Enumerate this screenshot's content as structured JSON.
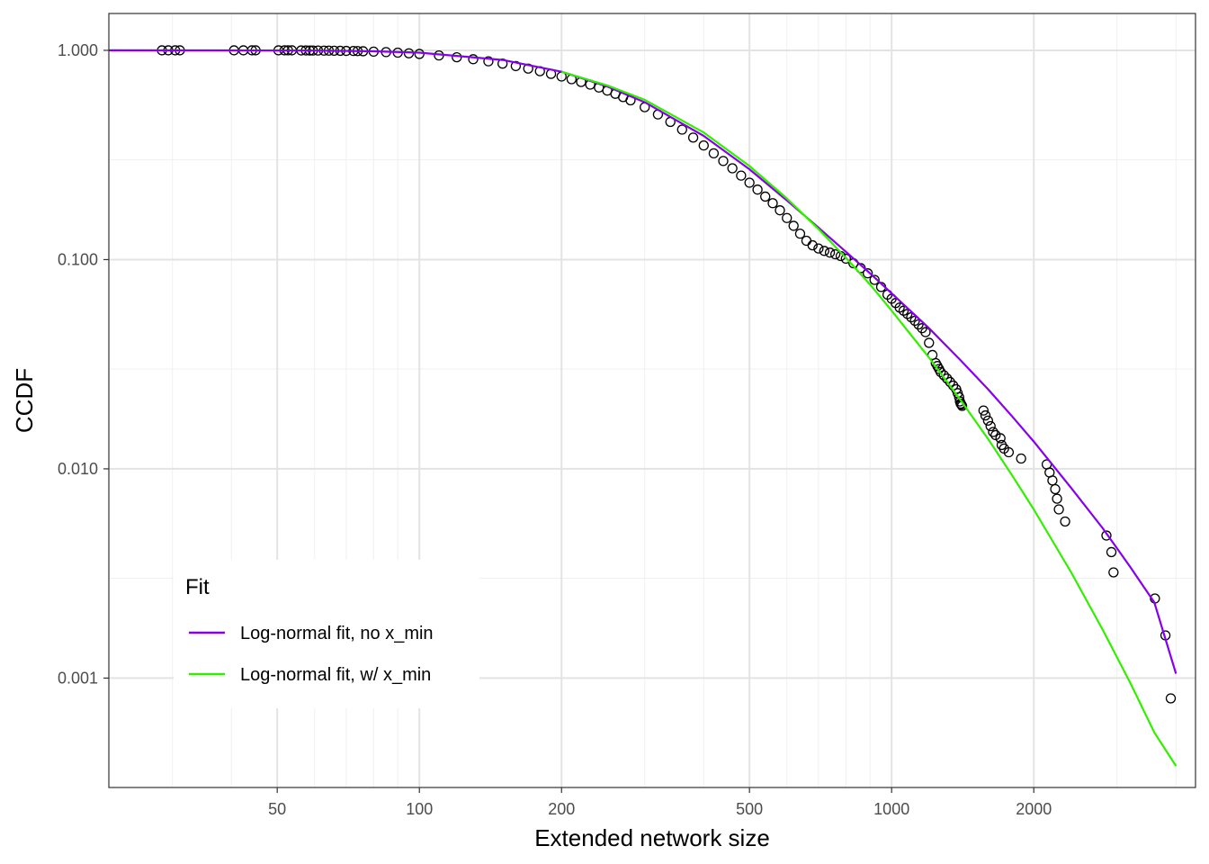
{
  "chart_data": {
    "type": "scatter",
    "title": "",
    "xlabel": "Extended network size",
    "ylabel": "CCDF",
    "x_scale": "log",
    "y_scale": "log",
    "xlim": [
      22,
      4400
    ],
    "ylim": [
      0.0003,
      1.5
    ],
    "x_ticks": [
      50,
      100,
      200,
      500,
      1000,
      2000
    ],
    "x_tick_labels": [
      "50",
      "100",
      "200",
      "500",
      "1000",
      "2000"
    ],
    "y_ticks": [
      0.001,
      0.01,
      0.1,
      1.0
    ],
    "y_tick_labels": [
      "0.001",
      "0.010",
      "0.100",
      "1.000"
    ],
    "grid": true,
    "series": [
      {
        "type": "scatter",
        "marker": "open-circle",
        "color": "#000000",
        "x": [
          28.5,
          29.4,
          30.4,
          31.1,
          40.5,
          42.4,
          44.2,
          45.0,
          50.3,
          51.8,
          52.7,
          53.7,
          56.2,
          57.5,
          58.6,
          59.5,
          61.0,
          62.8,
          64.3,
          66.0,
          68.0,
          70.0,
          72.5,
          74.0,
          76.0,
          80,
          85,
          90,
          95,
          100,
          110,
          120,
          130,
          140,
          150,
          160,
          170,
          180,
          190,
          200,
          210,
          220,
          230,
          240,
          250,
          260,
          270,
          280,
          300,
          320,
          340,
          360,
          380,
          400,
          420,
          440,
          460,
          480,
          500,
          520,
          540,
          560,
          580,
          600,
          620,
          640,
          660,
          680,
          700,
          720,
          740,
          760,
          780,
          800,
          830,
          860,
          890,
          920,
          950,
          980,
          1000,
          1020,
          1040,
          1060,
          1080,
          1100,
          1120,
          1140,
          1160,
          1180,
          1200,
          1220,
          1240,
          1250,
          1260,
          1270,
          1290,
          1310,
          1330,
          1350,
          1370,
          1380,
          1390,
          1395,
          1400,
          1405,
          1410,
          1565,
          1580,
          1600,
          1620,
          1640,
          1660,
          1700,
          1710,
          1730,
          1770,
          1880,
          2130,
          2160,
          2190,
          2220,
          2240,
          2260,
          2330,
          2850,
          2920,
          2950,
          3610,
          3800,
          3900
        ],
        "y": [
          1.0,
          1.0,
          1.0,
          1.0,
          1.0,
          1.0,
          1.0,
          1.0,
          1.0,
          1.0,
          1.0,
          1.0,
          0.999,
          0.999,
          0.998,
          0.998,
          0.998,
          0.997,
          0.997,
          0.996,
          0.995,
          0.994,
          0.993,
          0.992,
          0.99,
          0.986,
          0.981,
          0.975,
          0.968,
          0.961,
          0.945,
          0.927,
          0.907,
          0.886,
          0.864,
          0.841,
          0.818,
          0.795,
          0.772,
          0.75,
          0.728,
          0.706,
          0.686,
          0.664,
          0.642,
          0.62,
          0.598,
          0.577,
          0.535,
          0.494,
          0.455,
          0.418,
          0.383,
          0.351,
          0.322,
          0.296,
          0.273,
          0.252,
          0.233,
          0.216,
          0.2,
          0.186,
          0.172,
          0.158,
          0.145,
          0.133,
          0.123,
          0.117,
          0.113,
          0.11,
          0.108,
          0.106,
          0.104,
          0.101,
          0.096,
          0.091,
          0.086,
          0.08,
          0.074,
          0.068,
          0.065,
          0.062,
          0.059,
          0.057,
          0.055,
          0.053,
          0.051,
          0.049,
          0.047,
          0.045,
          0.04,
          0.035,
          0.032,
          0.031,
          0.03,
          0.029,
          0.028,
          0.027,
          0.026,
          0.025,
          0.024,
          0.023,
          0.022,
          0.021,
          0.0205,
          0.0203,
          0.02,
          0.019,
          0.018,
          0.017,
          0.016,
          0.015,
          0.0145,
          0.014,
          0.013,
          0.0125,
          0.012,
          0.0112,
          0.0105,
          0.0096,
          0.0088,
          0.008,
          0.0072,
          0.0064,
          0.0056,
          0.0048,
          0.004,
          0.0032,
          0.0024,
          0.0016,
          0.0008
        ]
      },
      {
        "type": "line",
        "name": "Log-normal fit, no x_min",
        "color": "#8600E8",
        "x": [
          22,
          40,
          60,
          80,
          100,
          150,
          200,
          250,
          300,
          400,
          500,
          600,
          700,
          800,
          900,
          1000,
          1200,
          1400,
          1600,
          1800,
          2000,
          2400,
          2800,
          3200,
          3600,
          4000
        ],
        "y": [
          1.0,
          0.9995,
          0.997,
          0.99,
          0.975,
          0.9,
          0.79,
          0.672,
          0.565,
          0.39,
          0.27,
          0.192,
          0.142,
          0.109,
          0.086,
          0.069,
          0.047,
          0.033,
          0.024,
          0.0178,
          0.0135,
          0.0081,
          0.0052,
          0.0034,
          0.0023,
          0.00105
        ]
      },
      {
        "type": "line",
        "name": "Log-normal fit, w/ x_min",
        "color": "#33EE00",
        "x": [
          200,
          250,
          300,
          400,
          500,
          600,
          700,
          800,
          900,
          1000,
          1200,
          1400,
          1600,
          1800,
          2000,
          2400,
          2800,
          3200,
          3600,
          4000
        ],
        "y": [
          0.79,
          0.68,
          0.58,
          0.405,
          0.28,
          0.196,
          0.14,
          0.102,
          0.076,
          0.057,
          0.034,
          0.0213,
          0.0139,
          0.0093,
          0.0064,
          0.0032,
          0.0017,
          0.00095,
          0.00055,
          0.00038
        ]
      }
    ],
    "legend": {
      "title": "Fit",
      "position": "bottom-left",
      "entries": [
        "Log-normal fit, no x_min",
        "Log-normal fit, w/ x_min"
      ]
    }
  }
}
